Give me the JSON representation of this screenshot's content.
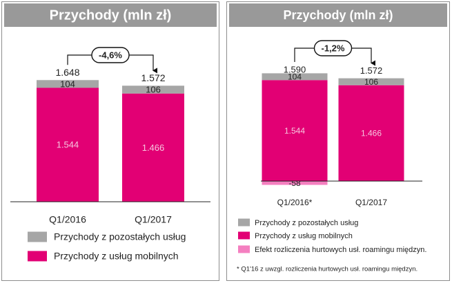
{
  "chart_data": [
    {
      "type": "stacked_bar",
      "title": "Przychody (mln zł)",
      "categories": [
        "Q1/2016",
        "Q1/2017"
      ],
      "series": [
        {
          "name": "Przychody z pozostałych usług",
          "color": "#a6a6a6",
          "values": [
            104,
            106
          ]
        },
        {
          "name": "Przychody z usług mobilnych",
          "color": "#e20074",
          "values": [
            1544,
            1466
          ],
          "value_labels": [
            "1.544",
            "1.466"
          ]
        }
      ],
      "totals": {
        "values": [
          1648,
          1572
        ],
        "value_labels": [
          "1.648",
          "1.572"
        ]
      },
      "annotation": "-4,6%",
      "ylim": [
        0,
        1800
      ]
    },
    {
      "type": "stacked_bar",
      "title": "Przychody (mln zł)",
      "categories": [
        "Q1/2016*",
        "Q1/2017"
      ],
      "series": [
        {
          "name": "Przychody z pozostałych usług",
          "color": "#a6a6a6",
          "values": [
            104,
            106
          ]
        },
        {
          "name": "Przychody z usług mobilnych",
          "color": "#e20074",
          "values": [
            1544,
            1466
          ],
          "value_labels": [
            "1.544",
            "1.466"
          ]
        },
        {
          "name": "Efekt rozliczenia hurtowych usł. roamingu międzyn.",
          "color": "#f47fc0",
          "values": [
            -58,
            null
          ]
        }
      ],
      "totals": {
        "values": [
          1590,
          1572
        ],
        "value_labels": [
          "1.590",
          "1.572"
        ]
      },
      "annotation": "-1,2%",
      "footnote": "* Q1'16 z uwzgl. rozliczenia hurtowych usł. roamingu międzyn.",
      "ylim": [
        -100,
        1800
      ]
    }
  ]
}
